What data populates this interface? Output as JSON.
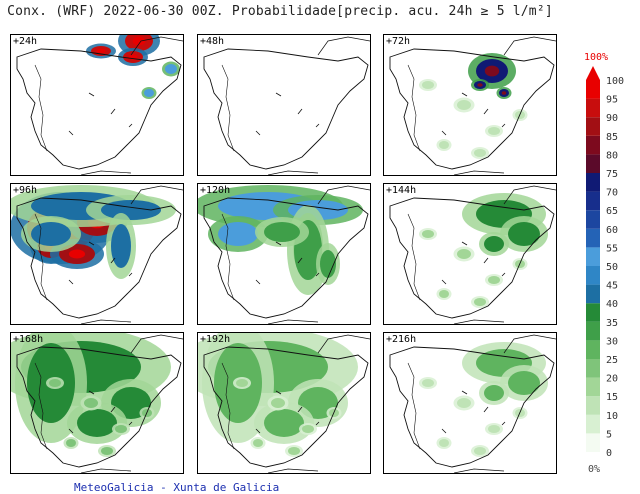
{
  "title": "Conx. (WRF) 2022-06-30 00Z. Probabilidade[precip. acu. 24h ≥ 5 l/m²]",
  "panels": [
    {
      "label": "+24h",
      "fields": [
        {
          "shape": "north-blob",
          "level": 0.95
        },
        {
          "shape": "pyrenees-east",
          "level": 0.55
        }
      ]
    },
    {
      "label": "+48h",
      "fields": []
    },
    {
      "label": "+72h",
      "fields": [
        {
          "shape": "ebro-north",
          "level": 0.75
        },
        {
          "shape": "scatter-light",
          "level": 0.12
        }
      ]
    },
    {
      "label": "+96h",
      "fields": [
        {
          "shape": "northwest-core",
          "level": 0.9
        },
        {
          "shape": "north-band",
          "level": 0.4
        }
      ]
    },
    {
      "label": "+120h",
      "fields": [
        {
          "shape": "north-band",
          "level": 0.55
        },
        {
          "shape": "central-tongue",
          "level": 0.3
        }
      ]
    },
    {
      "label": "+144h",
      "fields": [
        {
          "shape": "northeast",
          "level": 0.35
        },
        {
          "shape": "scatter-light",
          "level": 0.15
        }
      ]
    },
    {
      "label": "+168h",
      "fields": [
        {
          "shape": "wide-north",
          "level": 0.35
        },
        {
          "shape": "scatter-light",
          "level": 0.2
        }
      ]
    },
    {
      "label": "+192h",
      "fields": [
        {
          "shape": "wide-north",
          "level": 0.25
        },
        {
          "shape": "scatter-light",
          "level": 0.15
        }
      ]
    },
    {
      "label": "+216h",
      "fields": [
        {
          "shape": "northeast",
          "level": 0.25
        },
        {
          "shape": "scatter-light",
          "level": 0.12
        }
      ]
    }
  ],
  "colorbar": {
    "top_label": "100%",
    "bottom_label": "0%",
    "tick_labels": [
      "100",
      "95",
      "90",
      "85",
      "80",
      "75",
      "70",
      "65",
      "60",
      "55",
      "50",
      "45",
      "40",
      "35",
      "30",
      "25",
      "20",
      "15",
      "10",
      "5",
      "0"
    ],
    "colors": [
      "#f4fbf2",
      "#d8f0d2",
      "#bfe3b6",
      "#a2d697",
      "#7fc47a",
      "#5fb45f",
      "#3f9f49",
      "#258a37",
      "#1d6fa3",
      "#2f86c6",
      "#4b9ddb",
      "#2463b6",
      "#1c46a0",
      "#172e8c",
      "#101a74",
      "#5b0a2a",
      "#7d0a1e",
      "#a20f14",
      "#c80d0d",
      "#e80000"
    ]
  },
  "footer": "MeteoGalicia - Xunta de Galicia"
}
